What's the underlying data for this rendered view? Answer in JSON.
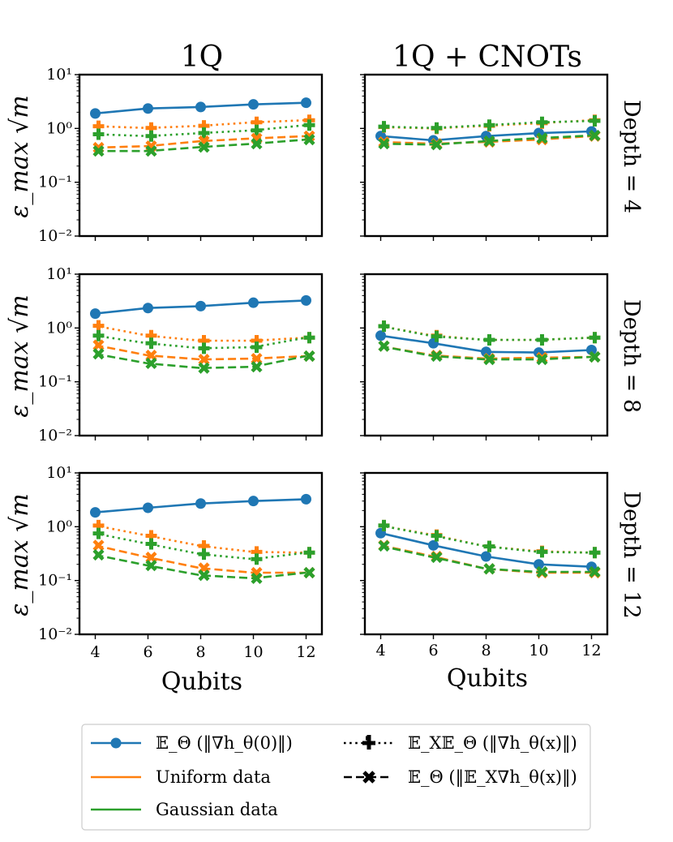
{
  "figure": {
    "col_titles": [
      "1Q",
      "1Q + CNOTs"
    ],
    "row_titles": [
      "Depth = 4",
      "Depth = 8",
      "Depth = 12"
    ],
    "ylabel": "ε_max √m",
    "xlabel": "Qubits"
  },
  "legend": {
    "items": [
      {
        "label": "𝔼_Θ (‖∇h_θ(0)‖)",
        "kind": "line-circle",
        "color": "#1f77b4"
      },
      {
        "label": "Uniform data",
        "kind": "line",
        "color": "#ff7f0e"
      },
      {
        "label": "Gaussian data",
        "kind": "line",
        "color": "#2ca02c"
      },
      {
        "label": "𝔼_X𝔼_Θ (‖∇h_θ(x)‖)",
        "kind": "dotted-plus",
        "color": "#000000"
      },
      {
        "label": "𝔼_Θ (‖𝔼_X∇h_θ(x)‖)",
        "kind": "dashed-x",
        "color": "#000000"
      }
    ]
  },
  "colors": {
    "blue": "#1f77b4",
    "orange": "#ff7f0e",
    "green": "#2ca02c"
  },
  "chart_data": {
    "type": "line",
    "yscale": "log",
    "ylim": [
      0.01,
      10
    ],
    "yticks": [
      0.01,
      0.1,
      1,
      10
    ],
    "ytick_labels": [
      "10⁻²",
      "10⁻¹",
      "10⁰",
      "10¹"
    ],
    "xlim": [
      3.4,
      12.6
    ],
    "xticks": [
      4,
      6,
      8,
      10,
      12
    ],
    "xtick_labels": [
      "4",
      "6",
      "8",
      "10",
      "12"
    ],
    "x": [
      4,
      6,
      8,
      10,
      12
    ],
    "panels": [
      {
        "row": "Depth = 4",
        "col": "1Q",
        "series": [
          {
            "name": "E_Θ(‖∇h_θ(0)‖)",
            "style": "solid-circle",
            "color": "#1f77b4",
            "values": [
              1.9,
              2.35,
              2.5,
              2.8,
              3.0
            ]
          },
          {
            "name": "Uniform E_X E_Θ",
            "style": "dotted-plus",
            "color": "#ff7f0e",
            "values": [
              1.1,
              1.02,
              1.12,
              1.3,
              1.42
            ]
          },
          {
            "name": "Gaussian E_X E_Θ",
            "style": "dotted-plus",
            "color": "#2ca02c",
            "values": [
              0.78,
              0.72,
              0.82,
              0.92,
              1.15
            ]
          },
          {
            "name": "Uniform E_Θ E_X",
            "style": "dashed-x",
            "color": "#ff7f0e",
            "values": [
              0.44,
              0.47,
              0.58,
              0.65,
              0.72
            ]
          },
          {
            "name": "Gaussian E_Θ E_X",
            "style": "dashed-x",
            "color": "#2ca02c",
            "values": [
              0.38,
              0.38,
              0.45,
              0.52,
              0.62
            ]
          }
        ]
      },
      {
        "row": "Depth = 4",
        "col": "1Q + CNOTs",
        "series": [
          {
            "name": "E_Θ(‖∇h_θ(0)‖)",
            "style": "solid-circle",
            "color": "#1f77b4",
            "values": [
              0.72,
              0.6,
              0.72,
              0.82,
              0.88
            ]
          },
          {
            "name": "Uniform E_X E_Θ",
            "style": "dotted-plus",
            "color": "#ff7f0e",
            "values": [
              1.06,
              1.0,
              1.12,
              1.25,
              1.42
            ]
          },
          {
            "name": "Gaussian E_X E_Θ",
            "style": "dotted-plus",
            "color": "#2ca02c",
            "values": [
              1.08,
              1.02,
              1.15,
              1.3,
              1.38
            ]
          },
          {
            "name": "Uniform E_Θ E_X",
            "style": "dashed-x",
            "color": "#ff7f0e",
            "values": [
              0.56,
              0.52,
              0.56,
              0.62,
              0.72
            ]
          },
          {
            "name": "Gaussian E_Θ E_X",
            "style": "dashed-x",
            "color": "#2ca02c",
            "values": [
              0.52,
              0.5,
              0.58,
              0.66,
              0.74
            ]
          }
        ]
      },
      {
        "row": "Depth = 8",
        "col": "1Q",
        "series": [
          {
            "name": "E_Θ(‖∇h_θ(0)‖)",
            "style": "solid-circle",
            "color": "#1f77b4",
            "values": [
              1.85,
              2.35,
              2.55,
              2.95,
              3.25
            ]
          },
          {
            "name": "Uniform E_X E_Θ",
            "style": "dotted-plus",
            "color": "#ff7f0e",
            "values": [
              1.1,
              0.72,
              0.58,
              0.58,
              0.66
            ]
          },
          {
            "name": "Gaussian E_X E_Θ",
            "style": "dotted-plus",
            "color": "#2ca02c",
            "values": [
              0.72,
              0.52,
              0.42,
              0.44,
              0.66
            ]
          },
          {
            "name": "Uniform E_Θ E_X",
            "style": "dashed-x",
            "color": "#ff7f0e",
            "values": [
              0.48,
              0.31,
              0.26,
              0.27,
              0.3
            ]
          },
          {
            "name": "Gaussian E_Θ E_X",
            "style": "dashed-x",
            "color": "#2ca02c",
            "values": [
              0.33,
              0.22,
              0.18,
              0.19,
              0.3
            ]
          }
        ]
      },
      {
        "row": "Depth = 8",
        "col": "1Q + CNOTs",
        "series": [
          {
            "name": "E_Θ(‖∇h_θ(0)‖)",
            "style": "solid-circle",
            "color": "#1f77b4",
            "values": [
              0.72,
              0.52,
              0.36,
              0.35,
              0.39
            ]
          },
          {
            "name": "Uniform E_X E_Θ",
            "style": "dotted-plus",
            "color": "#ff7f0e",
            "values": [
              1.08,
              0.72,
              0.6,
              0.6,
              0.66
            ]
          },
          {
            "name": "Gaussian E_X E_Θ",
            "style": "dotted-plus",
            "color": "#2ca02c",
            "values": [
              1.08,
              0.7,
              0.6,
              0.6,
              0.66
            ]
          },
          {
            "name": "Uniform E_Θ E_X",
            "style": "dashed-x",
            "color": "#ff7f0e",
            "values": [
              0.46,
              0.31,
              0.27,
              0.28,
              0.29
            ]
          },
          {
            "name": "Gaussian E_Θ E_X",
            "style": "dashed-x",
            "color": "#2ca02c",
            "values": [
              0.46,
              0.3,
              0.26,
              0.26,
              0.29
            ]
          }
        ]
      },
      {
        "row": "Depth = 12",
        "col": "1Q",
        "series": [
          {
            "name": "E_Θ(‖∇h_θ(0)‖)",
            "style": "solid-circle",
            "color": "#1f77b4",
            "values": [
              1.85,
              2.25,
              2.7,
              3.0,
              3.25
            ]
          },
          {
            "name": "Uniform E_X E_Θ",
            "style": "dotted-plus",
            "color": "#ff7f0e",
            "values": [
              1.05,
              0.68,
              0.44,
              0.34,
              0.33
            ]
          },
          {
            "name": "Gaussian E_X E_Θ",
            "style": "dotted-plus",
            "color": "#2ca02c",
            "values": [
              0.75,
              0.48,
              0.31,
              0.25,
              0.33
            ]
          },
          {
            "name": "Uniform E_Θ E_X",
            "style": "dashed-x",
            "color": "#ff7f0e",
            "values": [
              0.45,
              0.27,
              0.17,
              0.14,
              0.14
            ]
          },
          {
            "name": "Gaussian E_Θ E_X",
            "style": "dashed-x",
            "color": "#2ca02c",
            "values": [
              0.3,
              0.19,
              0.125,
              0.11,
              0.14
            ]
          }
        ]
      },
      {
        "row": "Depth = 12",
        "col": "1Q + CNOTs",
        "series": [
          {
            "name": "E_Θ(‖∇h_θ(0)‖)",
            "style": "solid-circle",
            "color": "#1f77b4",
            "values": [
              0.76,
              0.45,
              0.28,
              0.2,
              0.18
            ]
          },
          {
            "name": "Uniform E_X E_Θ",
            "style": "dotted-plus",
            "color": "#ff7f0e",
            "values": [
              1.05,
              0.7,
              0.43,
              0.35,
              0.33
            ]
          },
          {
            "name": "Gaussian E_X E_Θ",
            "style": "dotted-plus",
            "color": "#2ca02c",
            "values": [
              1.05,
              0.68,
              0.43,
              0.34,
              0.33
            ]
          },
          {
            "name": "Uniform E_Θ E_X",
            "style": "dashed-x",
            "color": "#ff7f0e",
            "values": [
              0.45,
              0.28,
              0.165,
              0.14,
              0.14
            ]
          },
          {
            "name": "Gaussian E_Θ E_X",
            "style": "dashed-x",
            "color": "#2ca02c",
            "values": [
              0.44,
              0.27,
              0.165,
              0.145,
              0.145
            ]
          }
        ]
      }
    ]
  }
}
